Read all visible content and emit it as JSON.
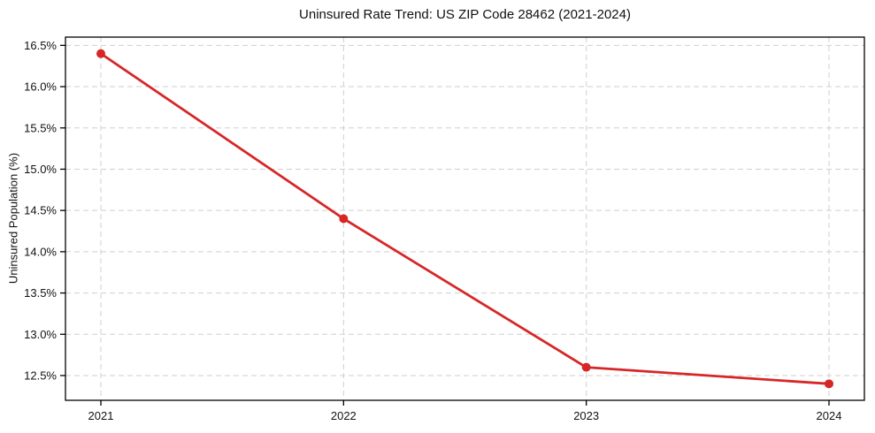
{
  "chart_data": {
    "type": "line",
    "title": "Uninsured Rate Trend: US ZIP Code 28462 (2021-2024)",
    "xlabel": "",
    "ylabel": "Uninsured Population (%)",
    "categories": [
      "2021",
      "2022",
      "2023",
      "2024"
    ],
    "series": [
      {
        "name": "Uninsured rate",
        "values": [
          16.4,
          14.4,
          12.6,
          12.4
        ],
        "color": "#d62728",
        "marker": "circle"
      }
    ],
    "ylim": [
      12.2,
      16.6
    ],
    "yticks": [
      12.5,
      13.0,
      13.5,
      14.0,
      14.5,
      15.0,
      15.5,
      16.0,
      16.5
    ],
    "ytick_labels": [
      "12.5%",
      "13.0%",
      "13.5%",
      "14.0%",
      "14.5%",
      "15.0%",
      "15.5%",
      "16.0%",
      "16.5%"
    ],
    "grid": {
      "show": true,
      "style": "dashed",
      "color": "#cfcfcf"
    },
    "axes_color": "#000000",
    "background": "#ffffff",
    "legend_position": "none"
  }
}
